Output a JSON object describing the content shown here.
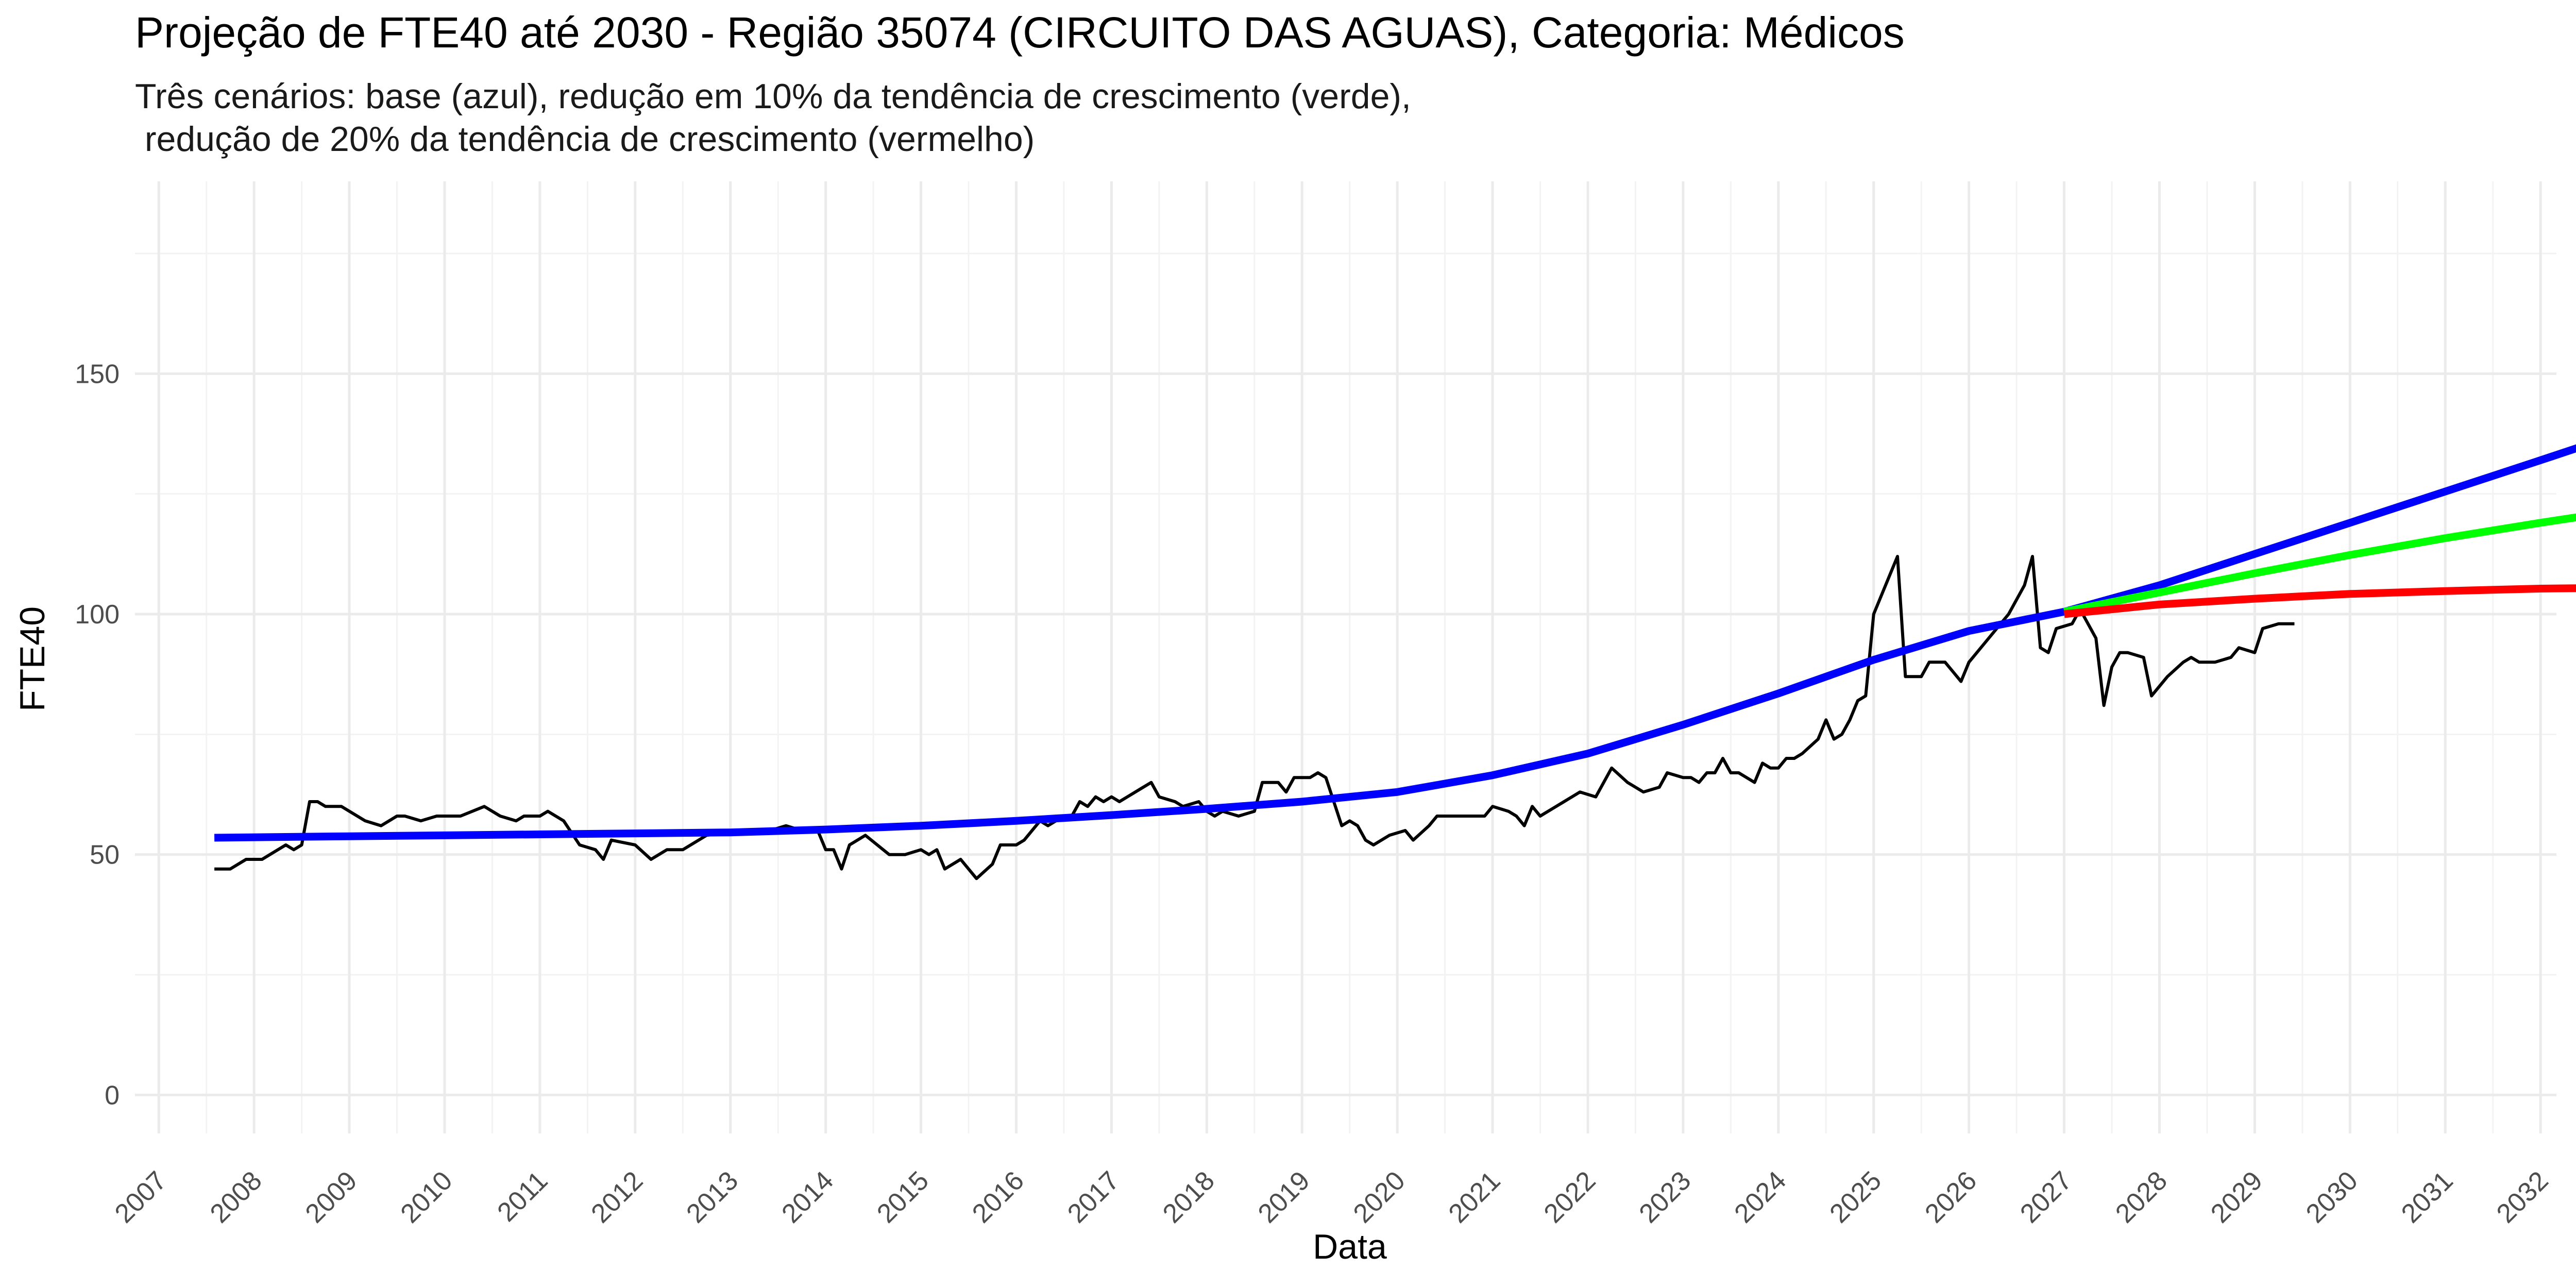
{
  "chart_data": {
    "type": "line",
    "title": "Projeção de FTE40 até 2030 - Região 35074 (CIRCUITO DAS AGUAS), Categoria: Médicos",
    "subtitle_lines": [
      "Três cenários: base (azul), redução em 10% da tendência de crescimento (verde),",
      " redução de 20% da tendência de crescimento (vermelho)"
    ],
    "xlabel": "Data",
    "ylabel": "FTE40",
    "x_scale": "date",
    "xlim": [
      "2006-10-01",
      "2032-03-01"
    ],
    "ylim": [
      -8,
      190
    ],
    "x_ticks": [
      "2007",
      "2008",
      "2009",
      "2010",
      "2011",
      "2012",
      "2013",
      "2014",
      "2015",
      "2016",
      "2017",
      "2018",
      "2019",
      "2020",
      "2021",
      "2022",
      "2023",
      "2024",
      "2025",
      "2026",
      "2027",
      "2028",
      "2029",
      "2030",
      "2031",
      "2032"
    ],
    "y_ticks": [
      0,
      50,
      100,
      150
    ],
    "grid": true,
    "legend": "none",
    "series": [
      {
        "color": "#000000",
        "points": [
          [
            "2007-08",
            47
          ],
          [
            "2007-10",
            47
          ],
          [
            "2007-12",
            49
          ],
          [
            "2008-02",
            49
          ],
          [
            "2008-04",
            51
          ],
          [
            "2008-05",
            52
          ],
          [
            "2008-06",
            51
          ],
          [
            "2008-07",
            52
          ],
          [
            "2008-08",
            61
          ],
          [
            "2008-09",
            61
          ],
          [
            "2008-10",
            60
          ],
          [
            "2008-12",
            60
          ],
          [
            "2009-03",
            57
          ],
          [
            "2009-05",
            56
          ],
          [
            "2009-07",
            58
          ],
          [
            "2009-08",
            58
          ],
          [
            "2009-10",
            57
          ],
          [
            "2009-12",
            58
          ],
          [
            "2010-03",
            58
          ],
          [
            "2010-06",
            60
          ],
          [
            "2010-08",
            58
          ],
          [
            "2010-10",
            57
          ],
          [
            "2010-11",
            58
          ],
          [
            "2011-01",
            58
          ],
          [
            "2011-02",
            59
          ],
          [
            "2011-04",
            57
          ],
          [
            "2011-06",
            52
          ],
          [
            "2011-08",
            51
          ],
          [
            "2011-09",
            49
          ],
          [
            "2011-10",
            53
          ],
          [
            "2012-01",
            52
          ],
          [
            "2012-03",
            49
          ],
          [
            "2012-05",
            51
          ],
          [
            "2012-07",
            51
          ],
          [
            "2012-10",
            54
          ],
          [
            "2013-03",
            55
          ],
          [
            "2013-06",
            55
          ],
          [
            "2013-08",
            56
          ],
          [
            "2013-10",
            55
          ],
          [
            "2013-12",
            55
          ],
          [
            "2014-01",
            51
          ],
          [
            "2014-02",
            51
          ],
          [
            "2014-03",
            47
          ],
          [
            "2014-04",
            52
          ],
          [
            "2014-06",
            54
          ],
          [
            "2014-09",
            50
          ],
          [
            "2014-11",
            50
          ],
          [
            "2015-01",
            51
          ],
          [
            "2015-02",
            50
          ],
          [
            "2015-03",
            51
          ],
          [
            "2015-04",
            47
          ],
          [
            "2015-06",
            49
          ],
          [
            "2015-08",
            45
          ],
          [
            "2015-10",
            48
          ],
          [
            "2015-11",
            52
          ],
          [
            "2016-01",
            52
          ],
          [
            "2016-02",
            53
          ],
          [
            "2016-04",
            57
          ],
          [
            "2016-05",
            56
          ],
          [
            "2016-06",
            57
          ],
          [
            "2016-07",
            58
          ],
          [
            "2016-08",
            58
          ],
          [
            "2016-09",
            61
          ],
          [
            "2016-10",
            60
          ],
          [
            "2016-11",
            62
          ],
          [
            "2016-12",
            61
          ],
          [
            "2017-01",
            62
          ],
          [
            "2017-02",
            61
          ],
          [
            "2017-03",
            62
          ],
          [
            "2017-05",
            64
          ],
          [
            "2017-06",
            65
          ],
          [
            "2017-07",
            62
          ],
          [
            "2017-09",
            61
          ],
          [
            "2017-10",
            60
          ],
          [
            "2017-12",
            61
          ],
          [
            "2018-01",
            59
          ],
          [
            "2018-02",
            58
          ],
          [
            "2018-03",
            59
          ],
          [
            "2018-05",
            58
          ],
          [
            "2018-07",
            59
          ],
          [
            "2018-08",
            65
          ],
          [
            "2018-10",
            65
          ],
          [
            "2018-11",
            63
          ],
          [
            "2018-12",
            66
          ],
          [
            "2019-02",
            66
          ],
          [
            "2019-03",
            67
          ],
          [
            "2019-04",
            66
          ],
          [
            "2019-06",
            56
          ],
          [
            "2019-07",
            57
          ],
          [
            "2019-08",
            56
          ],
          [
            "2019-09",
            53
          ],
          [
            "2019-10",
            52
          ],
          [
            "2019-12",
            54
          ],
          [
            "2020-02",
            55
          ],
          [
            "2020-03",
            53
          ],
          [
            "2020-05",
            56
          ],
          [
            "2020-06",
            58
          ],
          [
            "2020-08",
            58
          ],
          [
            "2020-10",
            58
          ],
          [
            "2020-12",
            58
          ],
          [
            "2021-01",
            60
          ],
          [
            "2021-03",
            59
          ],
          [
            "2021-04",
            58
          ],
          [
            "2021-05",
            56
          ],
          [
            "2021-06",
            60
          ],
          [
            "2021-07",
            58
          ],
          [
            "2021-09",
            60
          ],
          [
            "2021-10",
            61
          ],
          [
            "2021-12",
            63
          ],
          [
            "2022-02",
            62
          ],
          [
            "2022-03",
            65
          ],
          [
            "2022-04",
            68
          ],
          [
            "2022-06",
            65
          ],
          [
            "2022-08",
            63
          ],
          [
            "2022-10",
            64
          ],
          [
            "2022-11",
            67
          ],
          [
            "2023-01",
            66
          ],
          [
            "2023-02",
            66
          ],
          [
            "2023-03",
            65
          ],
          [
            "2023-04",
            67
          ],
          [
            "2023-05",
            67
          ],
          [
            "2023-06",
            70
          ],
          [
            "2023-07",
            67
          ],
          [
            "2023-08",
            67
          ],
          [
            "2023-09",
            66
          ],
          [
            "2023-10",
            65
          ],
          [
            "2023-11",
            69
          ],
          [
            "2023-12",
            68
          ],
          [
            "2024-01",
            68
          ],
          [
            "2024-02",
            70
          ],
          [
            "2024-03",
            70
          ],
          [
            "2024-04",
            71
          ],
          [
            "2024-06",
            74
          ],
          [
            "2024-07",
            78
          ],
          [
            "2024-08",
            74
          ],
          [
            "2024-09",
            75
          ],
          [
            "2024-10",
            78
          ],
          [
            "2024-11",
            82
          ],
          [
            "2024-12",
            83
          ],
          [
            "2025-01",
            100
          ],
          [
            "2025-03",
            108
          ],
          [
            "2025-04",
            112
          ],
          [
            "2025-05",
            87
          ],
          [
            "2025-06",
            87
          ],
          [
            "2025-07",
            87
          ],
          [
            "2025-08",
            90
          ],
          [
            "2025-10",
            90
          ],
          [
            "2025-11",
            88
          ],
          [
            "2025-12",
            86
          ],
          [
            "2026-01",
            90
          ],
          [
            "2026-03",
            94
          ],
          [
            "2026-05",
            98
          ],
          [
            "2026-06",
            100
          ],
          [
            "2026-08",
            106
          ],
          [
            "2026-09",
            112
          ],
          [
            "2026-10",
            93
          ],
          [
            "2026-11",
            92
          ],
          [
            "2026-12",
            97
          ],
          [
            "2027-02",
            98
          ],
          [
            "2027-03",
            101
          ],
          [
            "2027-05",
            95
          ],
          [
            "2027-06",
            81
          ],
          [
            "2027-07",
            89
          ],
          [
            "2027-08",
            92
          ],
          [
            "2027-09",
            92
          ],
          [
            "2027-11",
            91
          ],
          [
            "2027-12",
            83
          ],
          [
            "2028-02",
            87
          ],
          [
            "2028-04",
            90
          ],
          [
            "2028-05",
            91
          ],
          [
            "2028-06",
            90
          ],
          [
            "2028-08",
            90
          ],
          [
            "2028-10",
            91
          ],
          [
            "2028-11",
            93
          ],
          [
            "2029-01",
            92
          ],
          [
            "2029-02",
            97
          ],
          [
            "2029-04",
            98
          ],
          [
            "2029-06",
            98
          ]
        ]
      },
      {
        "color": "#0000ff",
        "points": [
          [
            "2007-08",
            53.5
          ],
          [
            "2009-01",
            53.8
          ],
          [
            "2011-01",
            54.2
          ],
          [
            "2013-01",
            54.6
          ],
          [
            "2014-01",
            55.2
          ],
          [
            "2015-01",
            56.0
          ],
          [
            "2016-01",
            57.0
          ],
          [
            "2017-01",
            58.2
          ],
          [
            "2018-01",
            59.5
          ],
          [
            "2019-01",
            61.0
          ],
          [
            "2020-01",
            63.0
          ],
          [
            "2021-01",
            66.5
          ],
          [
            "2022-01",
            71.0
          ],
          [
            "2023-01",
            77.0
          ],
          [
            "2024-01",
            83.5
          ],
          [
            "2025-01",
            90.5
          ],
          [
            "2026-01",
            96.5
          ],
          [
            "2027-01",
            100.5
          ]
        ]
      },
      {
        "color": "#0000ff",
        "points": [
          [
            "2027-01",
            100.5
          ],
          [
            "2028-01",
            106.0
          ],
          [
            "2029-01",
            112.5
          ],
          [
            "2030-01",
            119.0
          ],
          [
            "2031-01",
            125.5
          ],
          [
            "2032-01",
            132.0
          ],
          [
            "2032-11",
            137.5
          ]
        ]
      },
      {
        "color": "#00ff00",
        "points": [
          [
            "2027-01",
            100.5
          ],
          [
            "2028-01",
            104.5
          ],
          [
            "2029-01",
            108.5
          ],
          [
            "2030-01",
            112.3
          ],
          [
            "2031-01",
            115.8
          ],
          [
            "2032-01",
            119.0
          ],
          [
            "2032-11",
            121.5
          ]
        ]
      },
      {
        "color": "#ff0000",
        "points": [
          [
            "2027-01",
            100.0
          ],
          [
            "2028-01",
            102.0
          ],
          [
            "2029-01",
            103.2
          ],
          [
            "2030-01",
            104.2
          ],
          [
            "2031-01",
            104.8
          ],
          [
            "2032-01",
            105.3
          ],
          [
            "2032-11",
            105.5
          ]
        ]
      }
    ]
  }
}
